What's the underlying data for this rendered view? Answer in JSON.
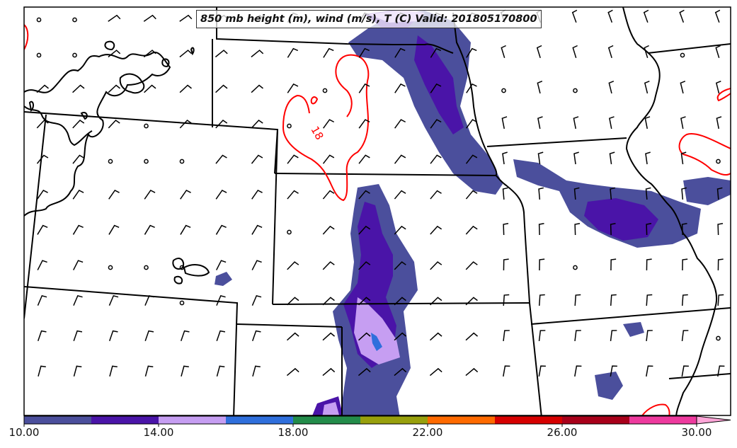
{
  "title": "850 mb height (m), wind (m/s), T (C) Valid: 201805170800",
  "contour_label": "18",
  "colorbar": {
    "ticks": [
      "10.00",
      "14.00",
      "18.00",
      "22.00",
      "26.00",
      "30.00"
    ],
    "colors": [
      "#4b4f9c",
      "#4a14a8",
      "#c69ef2",
      "#2f6fdc",
      "#238c4a",
      "#98a00c",
      "#ff6a00",
      "#d60000",
      "#a8001a",
      "#ee3a9e",
      "#ffa6d8"
    ]
  },
  "style": {
    "state_borders": "#000000",
    "height_contour": "#000000",
    "temperature_contour": "#ff0000",
    "wind_barbs": "#000000"
  }
}
